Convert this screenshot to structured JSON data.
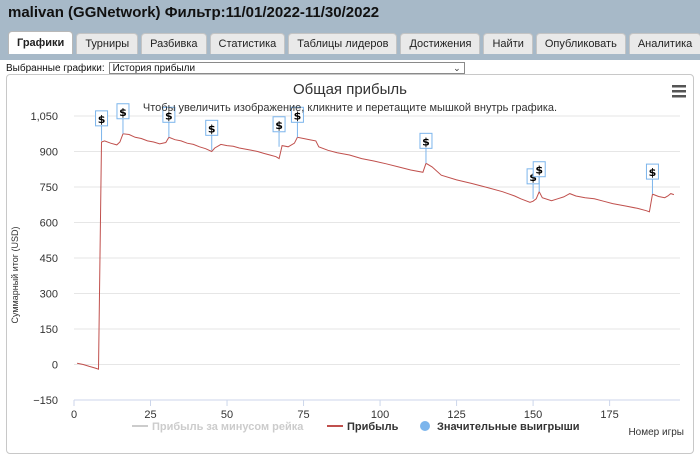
{
  "header": {
    "title": "malivan (GGNetwork) Фильтр:11/01/2022-11/30/2022",
    "tabs": [
      {
        "label": "Графики",
        "active": true
      },
      {
        "label": "Турниры"
      },
      {
        "label": "Разбивка"
      },
      {
        "label": "Статистика"
      },
      {
        "label": "Таблицы лидеров"
      },
      {
        "label": "Достижения"
      },
      {
        "label": "Найти"
      },
      {
        "label": "Опубликовать"
      },
      {
        "label": "Аналитика"
      }
    ]
  },
  "selector": {
    "label": "Выбранные графики:",
    "value": "История прибыли"
  },
  "chart_data": {
    "type": "line",
    "title": "Общая прибыль",
    "subtitle": "Чтобы увеличить изображение, кликните и перетащите мышкой внутрь графика.",
    "xlabel": "Номер игры",
    "ylabel": "Суммарный итог (USD)",
    "xlim": [
      0,
      198
    ],
    "ylim": [
      -150,
      1050
    ],
    "xticks": [
      0,
      25,
      50,
      75,
      100,
      125,
      150,
      175
    ],
    "yticks": [
      -150,
      0,
      150,
      300,
      450,
      600,
      750,
      900,
      1050
    ],
    "ytick_labels": [
      "−150",
      "0",
      "150",
      "300",
      "450",
      "600",
      "750",
      "900",
      "1,050"
    ],
    "grid": true,
    "series": [
      {
        "name": "Прибыль",
        "color": "#c0504d",
        "points": [
          [
            1,
            5
          ],
          [
            3,
            0
          ],
          [
            5,
            -8
          ],
          [
            7,
            -15
          ],
          [
            8,
            -20
          ],
          [
            9,
            940
          ],
          [
            10,
            945
          ],
          [
            12,
            935
          ],
          [
            14,
            928
          ],
          [
            15,
            940
          ],
          [
            16,
            975
          ],
          [
            18,
            972
          ],
          [
            20,
            960
          ],
          [
            22,
            955
          ],
          [
            24,
            945
          ],
          [
            26,
            940
          ],
          [
            28,
            932
          ],
          [
            30,
            938
          ],
          [
            31,
            960
          ],
          [
            33,
            950
          ],
          [
            35,
            945
          ],
          [
            37,
            935
          ],
          [
            39,
            930
          ],
          [
            41,
            920
          ],
          [
            43,
            912
          ],
          [
            45,
            900
          ],
          [
            46,
            915
          ],
          [
            48,
            930
          ],
          [
            50,
            925
          ],
          [
            52,
            922
          ],
          [
            54,
            915
          ],
          [
            56,
            910
          ],
          [
            58,
            905
          ],
          [
            60,
            900
          ],
          [
            62,
            892
          ],
          [
            64,
            885
          ],
          [
            66,
            878
          ],
          [
            67,
            870
          ],
          [
            68,
            925
          ],
          [
            70,
            920
          ],
          [
            72,
            935
          ],
          [
            73,
            960
          ],
          [
            75,
            955
          ],
          [
            77,
            950
          ],
          [
            79,
            945
          ],
          [
            80,
            920
          ],
          [
            83,
            905
          ],
          [
            86,
            895
          ],
          [
            90,
            885
          ],
          [
            94,
            870
          ],
          [
            98,
            860
          ],
          [
            102,
            848
          ],
          [
            106,
            835
          ],
          [
            110,
            822
          ],
          [
            114,
            812
          ],
          [
            115,
            850
          ],
          [
            117,
            835
          ],
          [
            120,
            800
          ],
          [
            125,
            780
          ],
          [
            130,
            765
          ],
          [
            135,
            748
          ],
          [
            140,
            730
          ],
          [
            144,
            712
          ],
          [
            146,
            700
          ],
          [
            149,
            685
          ],
          [
            150,
            690
          ],
          [
            151,
            700
          ],
          [
            152,
            730
          ],
          [
            153,
            705
          ],
          [
            156,
            692
          ],
          [
            158,
            700
          ],
          [
            160,
            708
          ],
          [
            162,
            722
          ],
          [
            164,
            712
          ],
          [
            167,
            705
          ],
          [
            170,
            700
          ],
          [
            173,
            690
          ],
          [
            176,
            680
          ],
          [
            180,
            670
          ],
          [
            184,
            660
          ],
          [
            187,
            650
          ],
          [
            188,
            645
          ],
          [
            189,
            720
          ],
          [
            191,
            710
          ],
          [
            193,
            705
          ],
          [
            194,
            712
          ],
          [
            195,
            722
          ],
          [
            196,
            718
          ]
        ]
      }
    ],
    "significant_wins": [
      {
        "x": 9,
        "y": 945
      },
      {
        "x": 16,
        "y": 975
      },
      {
        "x": 31,
        "y": 960
      },
      {
        "x": 45,
        "y": 905
      },
      {
        "x": 67,
        "y": 920
      },
      {
        "x": 73,
        "y": 960
      },
      {
        "x": 115,
        "y": 850
      },
      {
        "x": 150,
        "y": 700
      },
      {
        "x": 152,
        "y": 730
      },
      {
        "x": 189,
        "y": 720
      }
    ],
    "marker_label": "$",
    "legend": [
      {
        "name": "Прибыль за минусом рейка",
        "color": "#cccccc",
        "type": "line"
      },
      {
        "name": "Прибыль",
        "color": "#c0504d",
        "type": "line"
      },
      {
        "name": "Значительные выигрыши",
        "color": "#7cb5ec",
        "type": "circle"
      }
    ]
  }
}
